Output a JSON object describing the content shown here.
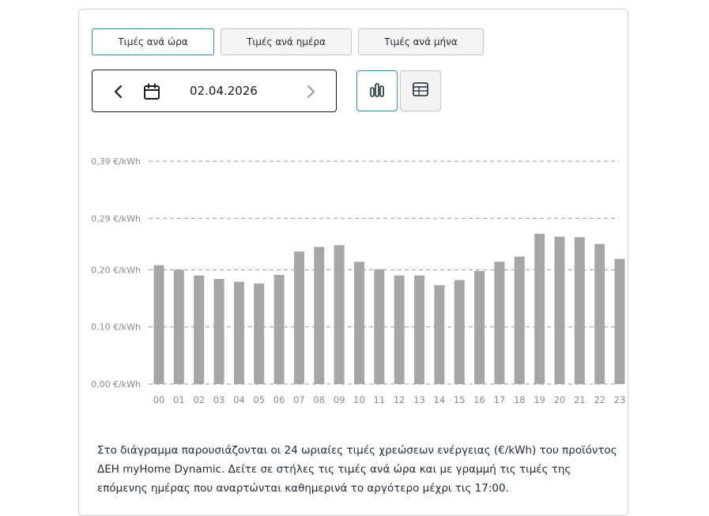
{
  "tabs": [
    {
      "label": "Τιμές ανά ώρα",
      "active": true
    },
    {
      "label": "Τιμές ανά ημέρα",
      "active": false
    },
    {
      "label": "Τιμές ανά μήνα",
      "active": false
    }
  ],
  "date_picker": {
    "value": "02.04.2026",
    "icons": {
      "prev": "chevron-left-icon",
      "calendar": "calendar-icon",
      "next": "chevron-right-icon"
    }
  },
  "view_toggle": {
    "chart_icon": "bar-chart-icon",
    "table_icon": "table-icon",
    "selected": "chart"
  },
  "colors": {
    "bar": "#a6a6a6",
    "accent": "#2f8fa8",
    "grid": "#9a9a9a",
    "tick_text": "#8a8a8a"
  },
  "chart_data": {
    "type": "bar",
    "categories": [
      "00",
      "01",
      "02",
      "03",
      "04",
      "05",
      "06",
      "07",
      "08",
      "09",
      "10",
      "11",
      "12",
      "13",
      "14",
      "15",
      "16",
      "17",
      "18",
      "19",
      "20",
      "21",
      "22",
      "23"
    ],
    "values": [
      0.208,
      0.2,
      0.19,
      0.184,
      0.179,
      0.176,
      0.191,
      0.232,
      0.24,
      0.243,
      0.214,
      0.201,
      0.19,
      0.19,
      0.173,
      0.182,
      0.198,
      0.214,
      0.223,
      0.263,
      0.258,
      0.257,
      0.245,
      0.219
    ],
    "yticks": [
      {
        "value": 0.0,
        "label": "0,00 €/kWh"
      },
      {
        "value": 0.1,
        "label": "0,10 €/kWh"
      },
      {
        "value": 0.2,
        "label": "0,20 €/kWh"
      },
      {
        "value": 0.29,
        "label": "0,29 €/kWh"
      },
      {
        "value": 0.39,
        "label": "0,39 €/kWh"
      }
    ],
    "ylim": [
      0,
      0.39
    ],
    "grid": true,
    "legend": "none"
  },
  "description": "Στο διάγραμμα παρουσιάζονται οι 24 ωριαίες τιμές χρεώσεων ενέργειας (€/kWh) του προϊόντος ΔΕΗ myHome Dynamic. Δείτε σε στήλες τις τιμές ανά ώρα και με γραμμή τις τιμές της επόμενης ημέρας που αναρτώνται καθημερινά το αργότερο μέχρι τις 17:00."
}
